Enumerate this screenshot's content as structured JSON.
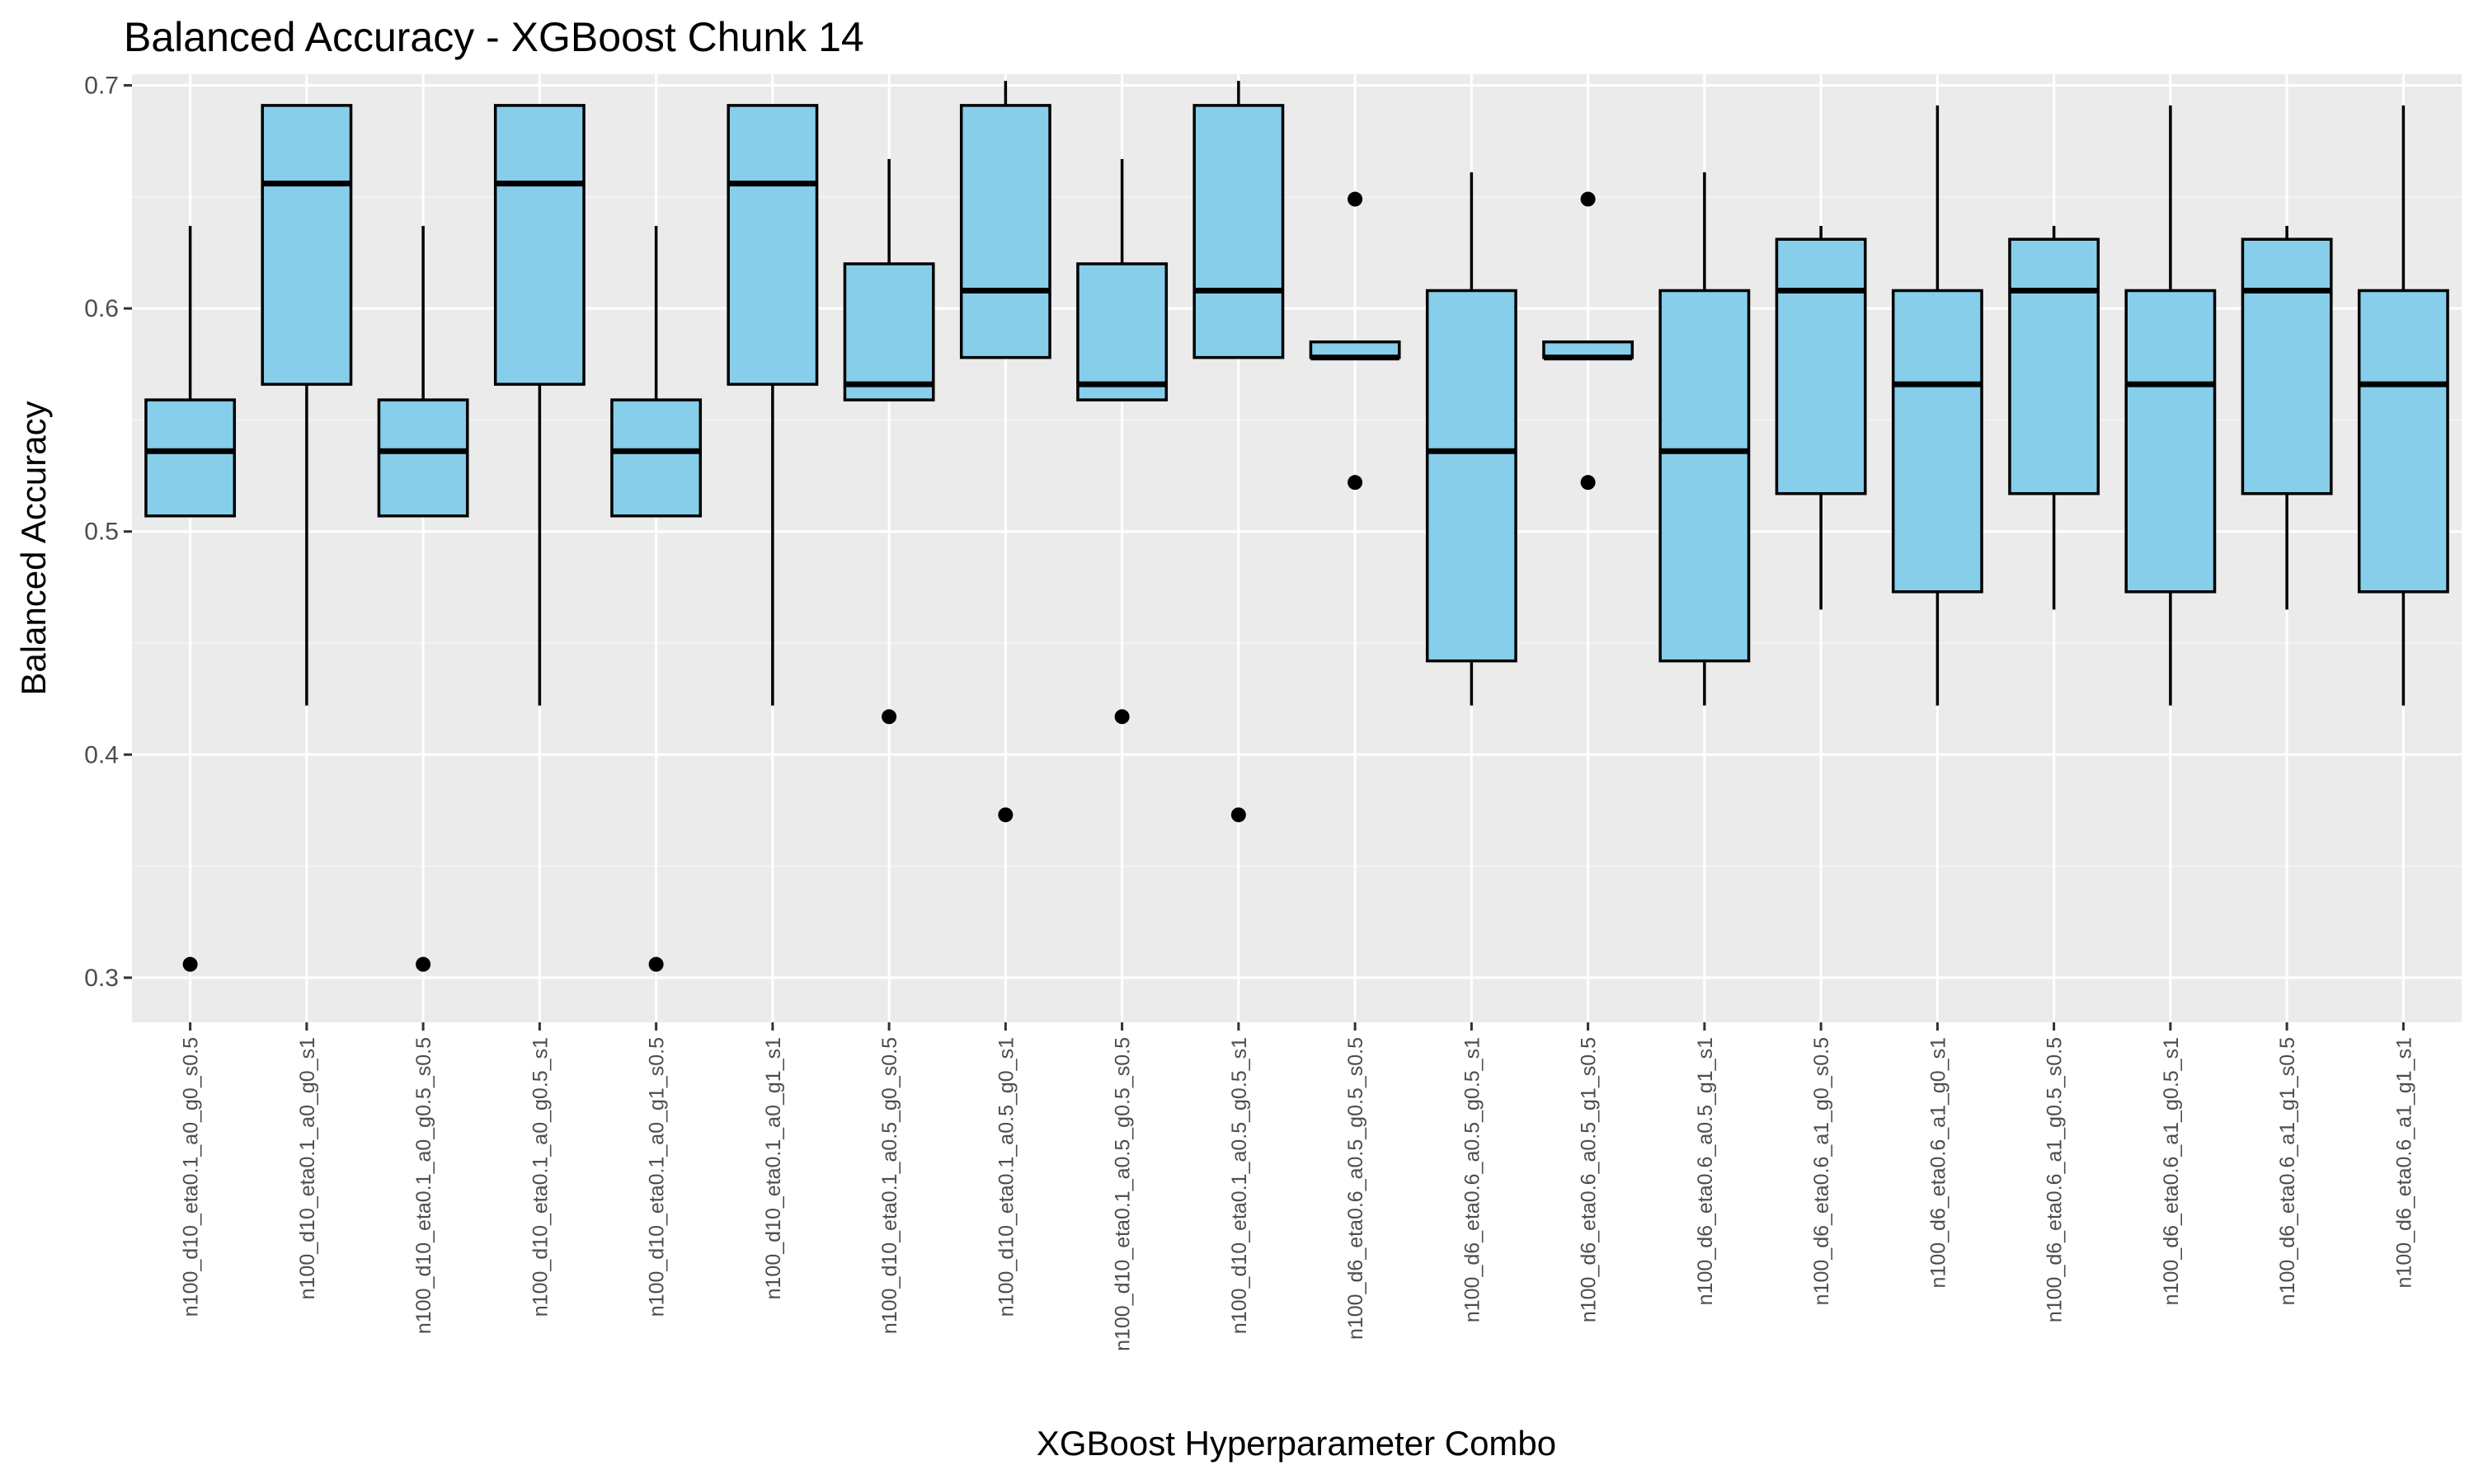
{
  "chart_data": {
    "type": "boxplot",
    "title": "Balanced Accuracy - XGBoost Chunk 14",
    "xlabel": "XGBoost Hyperparameter Combo",
    "ylabel": "Balanced Accuracy",
    "ylim": [
      0.28,
      0.705
    ],
    "yticks": [
      0.3,
      0.4,
      0.5,
      0.6,
      0.7
    ],
    "ytick_labels": [
      "0.3",
      "0.4",
      "0.5",
      "0.6",
      "0.7"
    ],
    "grid": true,
    "legend": "none",
    "colors": {
      "box_fill": "#87CEEB",
      "box_stroke": "#000000",
      "panel_bg": "#EBEBEB",
      "grid_major": "#FFFFFF",
      "grid_minor": "#F5F5F5"
    },
    "categories": [
      "n100_d10_eta0.1_a0_g0_s0.5",
      "n100_d10_eta0.1_a0_g0_s1",
      "n100_d10_eta0.1_a0_g0.5_s0.5",
      "n100_d10_eta0.1_a0_g0.5_s1",
      "n100_d10_eta0.1_a0_g1_s0.5",
      "n100_d10_eta0.1_a0_g1_s1",
      "n100_d10_eta0.1_a0.5_g0_s0.5",
      "n100_d10_eta0.1_a0.5_g0_s1",
      "n100_d10_eta0.1_a0.5_g0.5_s0.5",
      "n100_d10_eta0.1_a0.5_g0.5_s1",
      "n100_d6_eta0.6_a0.5_g0.5_s0.5",
      "n100_d6_eta0.6_a0.5_g0.5_s1",
      "n100_d6_eta0.6_a0.5_g1_s0.5",
      "n100_d6_eta0.6_a0.5_g1_s1",
      "n100_d6_eta0.6_a1_g0_s0.5",
      "n100_d6_eta0.6_a1_g0_s1",
      "n100_d6_eta0.6_a1_g0.5_s0.5",
      "n100_d6_eta0.6_a1_g0.5_s1",
      "n100_d6_eta0.6_a1_g1_s0.5",
      "n100_d6_eta0.6_a1_g1_s1"
    ],
    "boxes": [
      {
        "whisker_low": 0.507,
        "q1": 0.507,
        "median": 0.536,
        "q3": 0.559,
        "whisker_high": 0.637,
        "outliers": [
          0.306
        ]
      },
      {
        "whisker_low": 0.422,
        "q1": 0.566,
        "median": 0.656,
        "q3": 0.691,
        "whisker_high": 0.691,
        "outliers": []
      },
      {
        "whisker_low": 0.507,
        "q1": 0.507,
        "median": 0.536,
        "q3": 0.559,
        "whisker_high": 0.637,
        "outliers": [
          0.306
        ]
      },
      {
        "whisker_low": 0.422,
        "q1": 0.566,
        "median": 0.656,
        "q3": 0.691,
        "whisker_high": 0.691,
        "outliers": []
      },
      {
        "whisker_low": 0.507,
        "q1": 0.507,
        "median": 0.536,
        "q3": 0.559,
        "whisker_high": 0.637,
        "outliers": [
          0.306
        ]
      },
      {
        "whisker_low": 0.422,
        "q1": 0.566,
        "median": 0.656,
        "q3": 0.691,
        "whisker_high": 0.691,
        "outliers": []
      },
      {
        "whisker_low": 0.559,
        "q1": 0.559,
        "median": 0.566,
        "q3": 0.62,
        "whisker_high": 0.667,
        "outliers": [
          0.417
        ]
      },
      {
        "whisker_low": 0.578,
        "q1": 0.578,
        "median": 0.608,
        "q3": 0.691,
        "whisker_high": 0.702,
        "outliers": [
          0.373
        ]
      },
      {
        "whisker_low": 0.559,
        "q1": 0.559,
        "median": 0.566,
        "q3": 0.62,
        "whisker_high": 0.667,
        "outliers": [
          0.417
        ]
      },
      {
        "whisker_low": 0.578,
        "q1": 0.578,
        "median": 0.608,
        "q3": 0.691,
        "whisker_high": 0.702,
        "outliers": [
          0.373
        ]
      },
      {
        "whisker_low": 0.578,
        "q1": 0.578,
        "median": 0.578,
        "q3": 0.585,
        "whisker_high": 0.585,
        "outliers": [
          0.649,
          0.522
        ]
      },
      {
        "whisker_low": 0.422,
        "q1": 0.442,
        "median": 0.536,
        "q3": 0.608,
        "whisker_high": 0.661,
        "outliers": []
      },
      {
        "whisker_low": 0.578,
        "q1": 0.578,
        "median": 0.578,
        "q3": 0.585,
        "whisker_high": 0.585,
        "outliers": [
          0.649,
          0.522
        ]
      },
      {
        "whisker_low": 0.422,
        "q1": 0.442,
        "median": 0.536,
        "q3": 0.608,
        "whisker_high": 0.661,
        "outliers": []
      },
      {
        "whisker_low": 0.465,
        "q1": 0.517,
        "median": 0.608,
        "q3": 0.631,
        "whisker_high": 0.637,
        "outliers": []
      },
      {
        "whisker_low": 0.422,
        "q1": 0.473,
        "median": 0.566,
        "q3": 0.608,
        "whisker_high": 0.691,
        "outliers": []
      },
      {
        "whisker_low": 0.465,
        "q1": 0.517,
        "median": 0.608,
        "q3": 0.631,
        "whisker_high": 0.637,
        "outliers": []
      },
      {
        "whisker_low": 0.422,
        "q1": 0.473,
        "median": 0.566,
        "q3": 0.608,
        "whisker_high": 0.691,
        "outliers": []
      },
      {
        "whisker_low": 0.465,
        "q1": 0.517,
        "median": 0.608,
        "q3": 0.631,
        "whisker_high": 0.637,
        "outliers": []
      },
      {
        "whisker_low": 0.422,
        "q1": 0.473,
        "median": 0.566,
        "q3": 0.608,
        "whisker_high": 0.691,
        "outliers": []
      }
    ]
  }
}
